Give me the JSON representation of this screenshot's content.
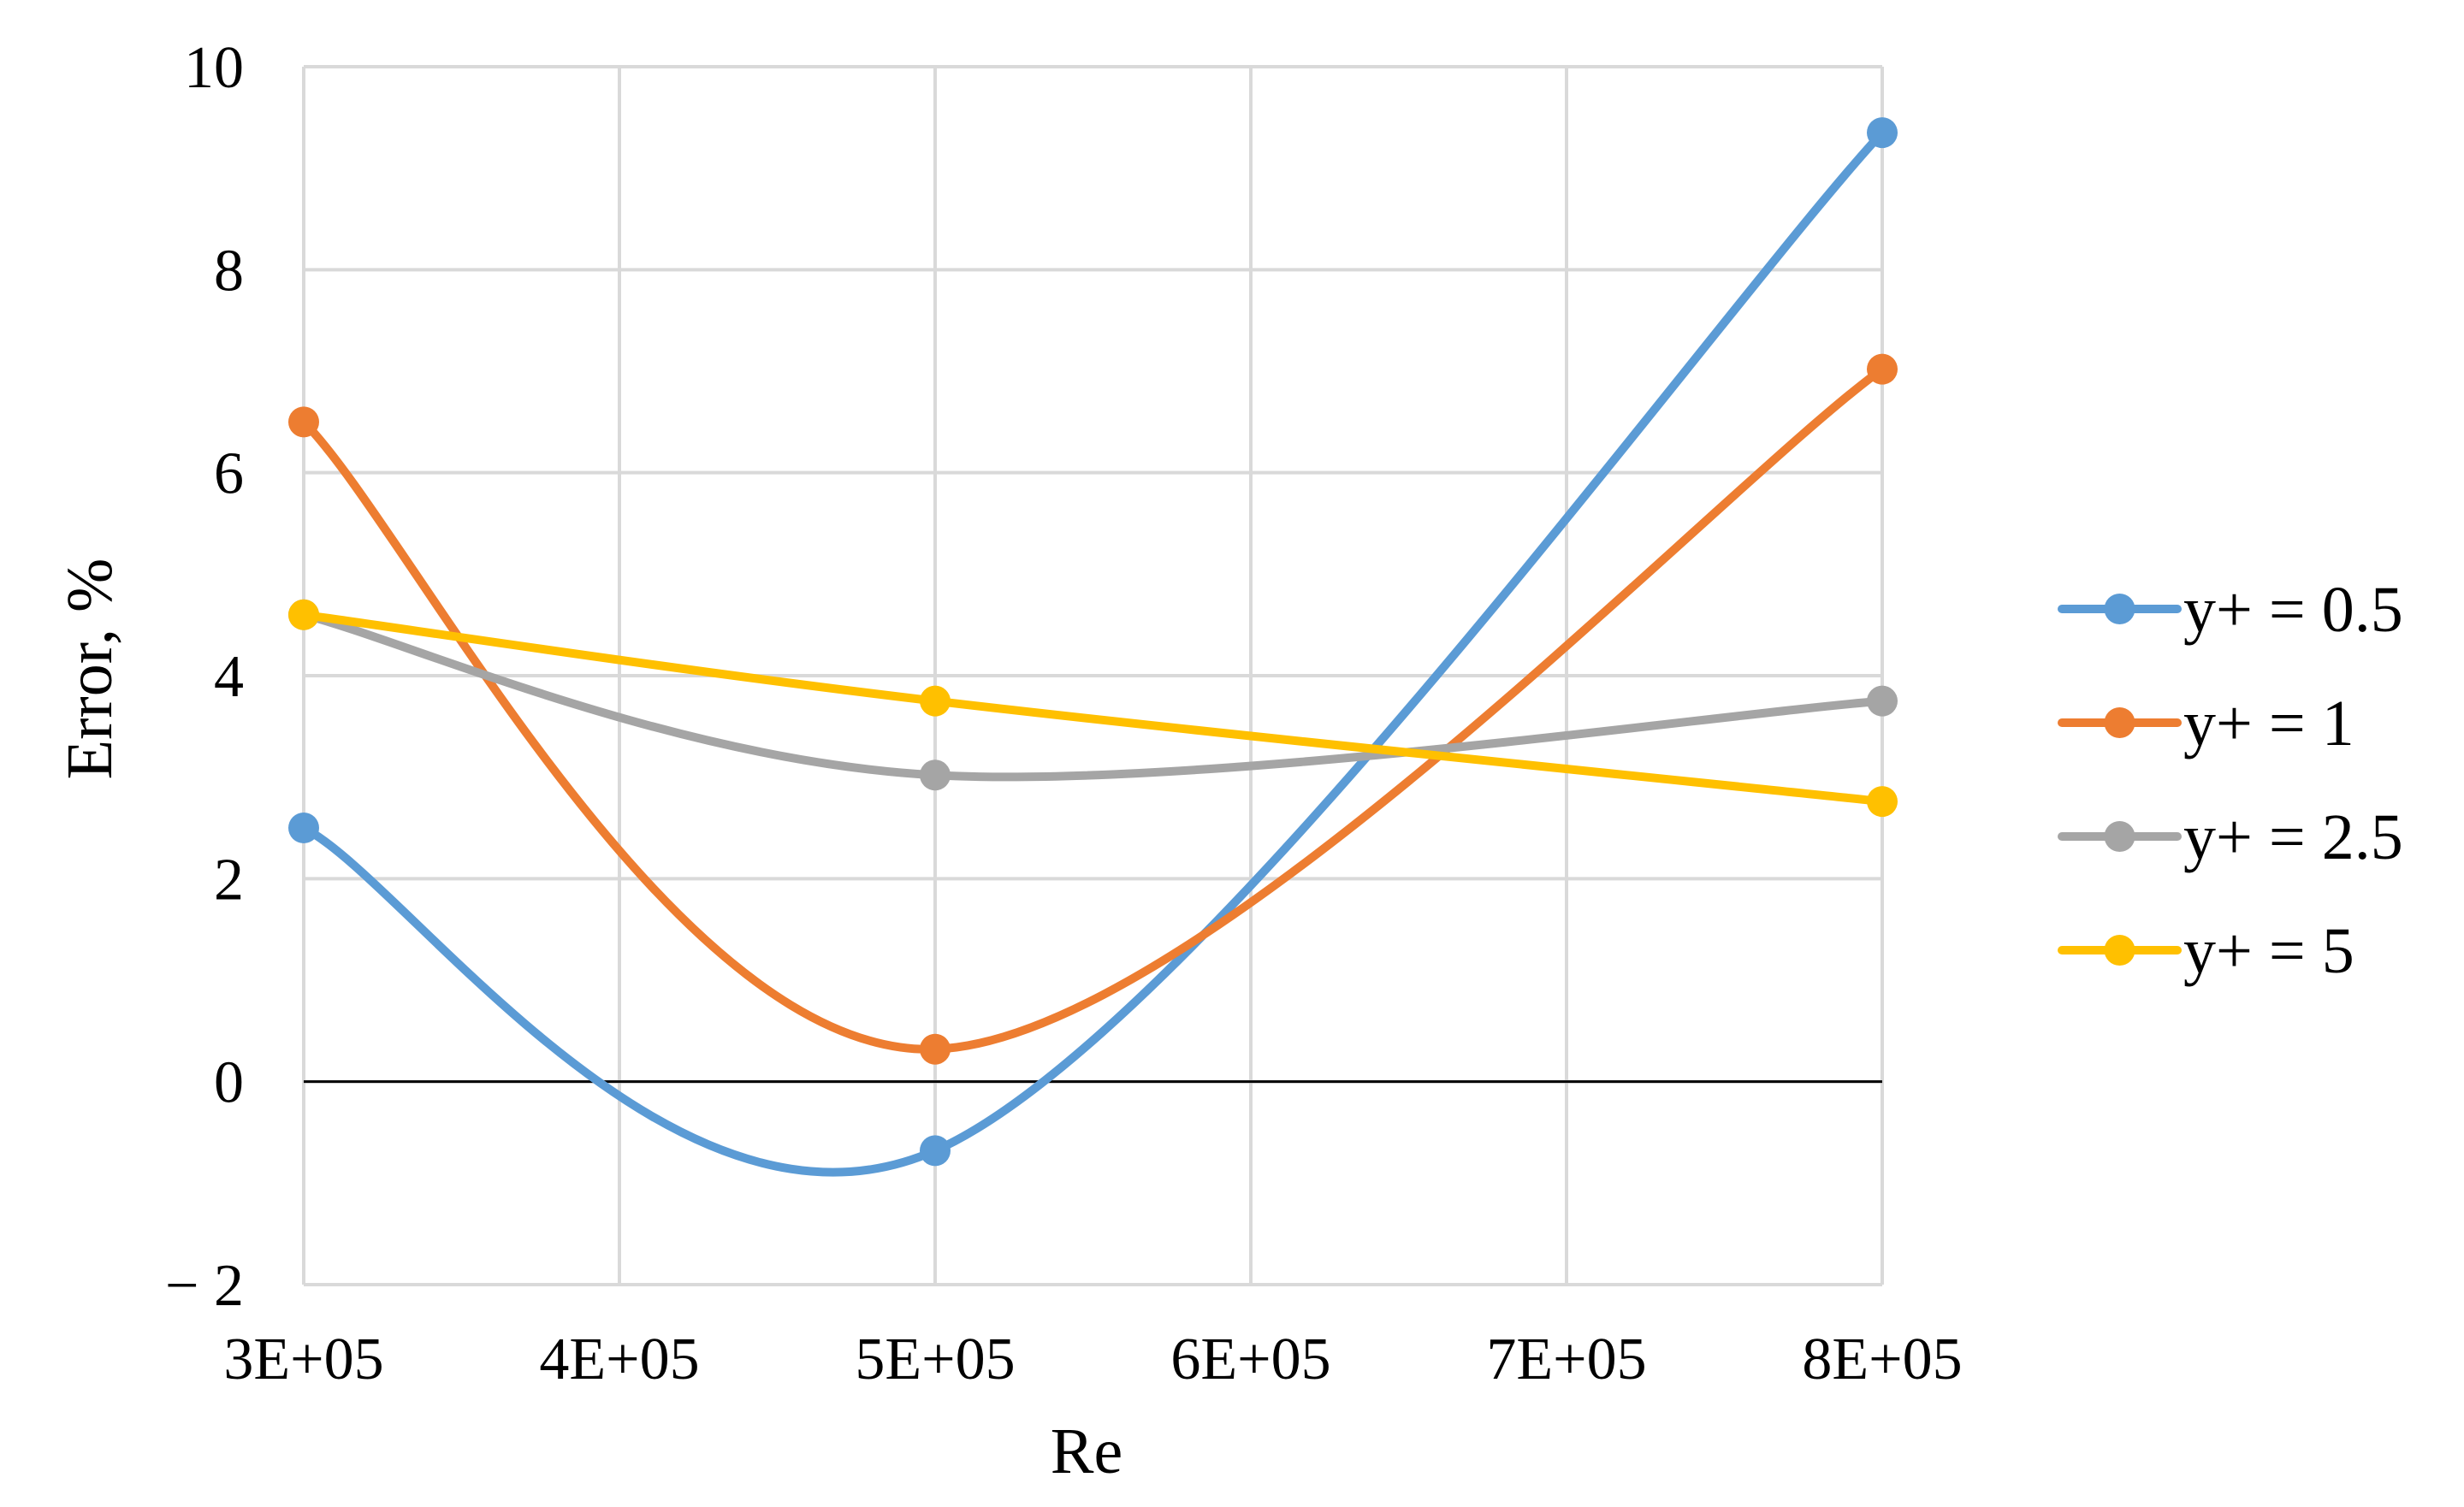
{
  "chart_data": {
    "type": "line",
    "title": "",
    "xlabel": "Re",
    "ylabel": "Error, %",
    "x": [
      300000,
      500000,
      800000
    ],
    "xlim": [
      300000,
      800000
    ],
    "x_ticks": [
      300000,
      400000,
      500000,
      600000,
      700000,
      800000
    ],
    "x_tick_labels": [
      "3E+05",
      "4E+05",
      "5E+05",
      "6E+05",
      "7E+05",
      "8E+05"
    ],
    "ylim": [
      -2,
      10
    ],
    "y_ticks": [
      -2,
      0,
      2,
      4,
      6,
      8,
      10
    ],
    "y_tick_labels": [
      "− 2",
      "0",
      "2",
      "4",
      "6",
      "8",
      "10"
    ],
    "grid": true,
    "smooth": true,
    "zero_line": true,
    "legend_position": "right",
    "series": [
      {
        "name": "y+ = 0.5",
        "color": "#5B9BD5",
        "values": [
          2.5,
          -0.68,
          9.35
        ]
      },
      {
        "name": "y+ = 1",
        "color": "#ED7D31",
        "values": [
          6.5,
          0.32,
          7.02
        ]
      },
      {
        "name": "y+ = 2.5",
        "color": "#A5A5A5",
        "values": [
          4.6,
          3.02,
          3.75
        ]
      },
      {
        "name": "y+ = 5",
        "color": "#FFC000",
        "values": [
          4.6,
          3.75,
          2.76
        ]
      }
    ]
  }
}
